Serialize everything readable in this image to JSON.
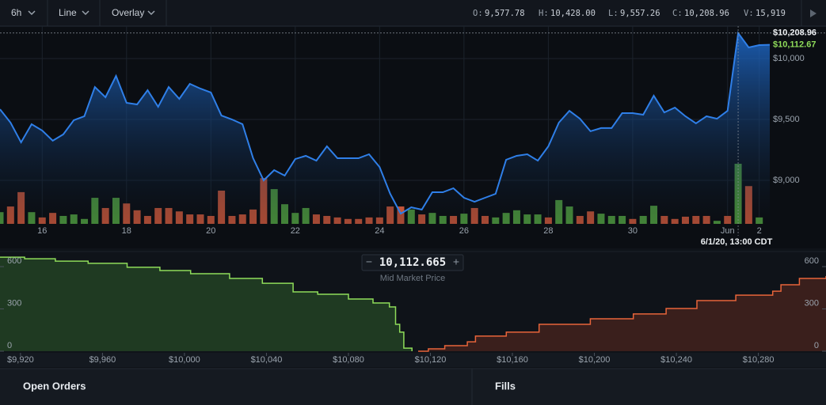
{
  "toolbar": {
    "interval": "6h",
    "chart_type": "Line",
    "overlay": "Overlay",
    "ohlcv": [
      {
        "key": "O:",
        "value": "9,577.78"
      },
      {
        "key": "H:",
        "value": "10,428.00"
      },
      {
        "key": "L:",
        "value": "9,557.26"
      },
      {
        "key": "C:",
        "value": "10,208.96"
      },
      {
        "key": "V:",
        "value": "15,919"
      }
    ]
  },
  "chart_data": [
    {
      "type": "line",
      "area": true,
      "color": "#2f7fe8",
      "categories": [
        null,
        null,
        null,
        null,
        "16",
        null,
        null,
        null,
        null,
        null,
        null,
        null,
        "18",
        null,
        null,
        null,
        null,
        null,
        null,
        null,
        "20",
        null,
        null,
        null,
        null,
        null,
        null,
        null,
        "22",
        null,
        null,
        null,
        null,
        null,
        null,
        null,
        "24",
        null,
        null,
        null,
        null,
        null,
        null,
        null,
        "26",
        null,
        null,
        null,
        null,
        null,
        null,
        null,
        "28",
        null,
        null,
        null,
        null,
        null,
        null,
        null,
        "30",
        null,
        null,
        null,
        null,
        null,
        null,
        null,
        null,
        "Jun",
        null,
        null,
        "2",
        null
      ],
      "values": [
        9584,
        9474,
        9312,
        9461,
        9409,
        9325,
        9377,
        9494,
        9526,
        9766,
        9682,
        9857,
        9636,
        9623,
        9740,
        9604,
        9766,
        9669,
        9792,
        9753,
        9721,
        9532,
        9500,
        9461,
        9182,
        9000,
        9084,
        9039,
        9175,
        9201,
        9162,
        9279,
        9182,
        9182,
        9182,
        9214,
        9110,
        8890,
        8727,
        8779,
        8760,
        8903,
        8903,
        8935,
        8857,
        8825,
        8857,
        8890,
        9169,
        9201,
        9214,
        9162,
        9279,
        9474,
        9571,
        9506,
        9403,
        9429,
        9429,
        9552,
        9552,
        9539,
        9695,
        9558,
        9597,
        9526,
        9468,
        9526,
        9506,
        9571,
        10208.96,
        10091,
        10110,
        10112.67
      ],
      "volume_values": [
        3100,
        4600,
        8400,
        3100,
        1700,
        2900,
        2100,
        2500,
        1300,
        6900,
        4200,
        6900,
        5400,
        3600,
        2100,
        4200,
        4200,
        3300,
        2500,
        2500,
        2100,
        8800,
        2100,
        2500,
        3800,
        12100,
        9200,
        5200,
        2900,
        4200,
        2500,
        2100,
        1700,
        1300,
        1300,
        1700,
        1700,
        4600,
        4600,
        3800,
        2500,
        2900,
        2100,
        2100,
        2700,
        4200,
        2100,
        1700,
        2900,
        3600,
        2500,
        2500,
        1700,
        6300,
        4600,
        2100,
        3300,
        2700,
        2100,
        2100,
        1300,
        2100,
        4800,
        2100,
        1300,
        1900,
        2100,
        2100,
        800,
        2100,
        15919,
        10000,
        1700,
        null
      ],
      "volume_directions": [
        "up",
        "down",
        "down",
        "up",
        "down",
        "down",
        "up",
        "up",
        "up",
        "up",
        "down",
        "up",
        "down",
        "down",
        "down",
        "down",
        "down",
        "down",
        "down",
        "down",
        "down",
        "down",
        "down",
        "down",
        "down",
        "down",
        "up",
        "up",
        "up",
        "up",
        "down",
        "down",
        "down",
        "down",
        "down",
        "down",
        "down",
        "down",
        "down",
        "up",
        "down",
        "up",
        "up",
        "down",
        "up",
        "down",
        "down",
        "up",
        "up",
        "up",
        "up",
        "up",
        "down",
        "up",
        "up",
        "down",
        "down",
        "up",
        "up",
        "up",
        "down",
        "up",
        "up",
        "down",
        "down",
        "down",
        "down",
        "down",
        "up",
        "down",
        "up",
        "down",
        "up",
        null
      ],
      "up_color": "#4e9a3f",
      "down_color": "#c4553a",
      "ylim": [
        8643,
        10266
      ],
      "yticks": [
        {
          "value": 9000,
          "label": "$9,000"
        },
        {
          "value": 9500,
          "label": "$9,500"
        },
        {
          "value": 10000,
          "label": "$10,000"
        }
      ],
      "grid": true,
      "crosshair": {
        "value": 10208.96,
        "label": "$10,208.96",
        "time_label": "6/1/20, 13:00 CDT"
      },
      "last_price": {
        "value": 10112.67,
        "label": "$10,112.67",
        "color": "#8fdc5a"
      }
    },
    {
      "type": "depth",
      "xlim": [
        9910,
        10313
      ],
      "xticks": [
        {
          "value": 9920,
          "label": "$9,920"
        },
        {
          "value": 9960,
          "label": "$9,960"
        },
        {
          "value": 10000,
          "label": "$10,000"
        },
        {
          "value": 10040,
          "label": "$10,040"
        },
        {
          "value": 10080,
          "label": "$10,080"
        },
        {
          "value": 10120,
          "label": "$10,120"
        },
        {
          "value": 10160,
          "label": "$10,160"
        },
        {
          "value": 10200,
          "label": "$10,200"
        },
        {
          "value": 10240,
          "label": "$10,240"
        },
        {
          "value": 10280,
          "label": "$10,280"
        }
      ],
      "ylim": [
        0,
        690
      ],
      "yticks": [
        0,
        300,
        600
      ],
      "bids": {
        "color": "#8fdc5a",
        "fill": "#1f3a22",
        "x": [
          9910,
          9922,
          9937,
          9953,
          9972,
          9988,
          10003,
          10022,
          10038,
          10053,
          10065,
          10080,
          10092,
          10100,
          10103,
          10105,
          10107,
          10111
        ],
        "values": [
          667,
          656,
          639,
          623,
          595,
          572,
          550,
          516,
          482,
          421,
          404,
          370,
          342,
          314,
          191,
          135,
          22,
          0
        ]
      },
      "asks": {
        "color": "#e8643a",
        "fill": "#3a1f1c",
        "x": [
          10114,
          10119,
          10127,
          10138,
          10142,
          10157,
          10173,
          10198,
          10219,
          10235,
          10250,
          10269,
          10287,
          10291,
          10300,
          10313
        ],
        "values": [
          0,
          17,
          39,
          67,
          107,
          135,
          191,
          230,
          264,
          303,
          359,
          398,
          426,
          471,
          516,
          533
        ]
      }
    }
  ],
  "mid_market": {
    "price": "10,112.665",
    "label": "Mid Market Price"
  },
  "tabs": [
    "Open Orders",
    "Fills"
  ]
}
